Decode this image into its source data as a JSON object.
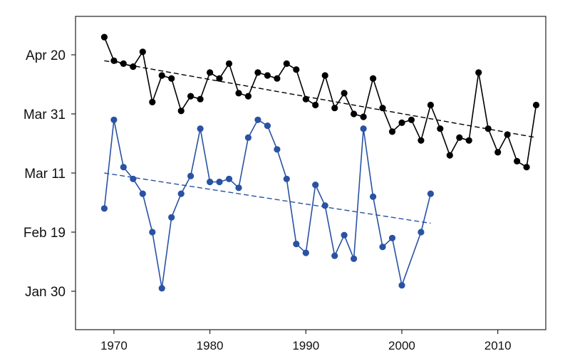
{
  "chart_data": {
    "type": "line",
    "title": "",
    "xlabel": "",
    "ylabel": "",
    "x_ticks": [
      1970,
      1980,
      1990,
      2000,
      2010
    ],
    "x_tick_labels": [
      "1970",
      "1980",
      "1990",
      "2000",
      "2010"
    ],
    "xlim": [
      1966,
      2015
    ],
    "y_ticks": [
      "Jan 30",
      "Feb 19",
      "Mar 11",
      "Mar 31",
      "Apr 20"
    ],
    "y_tick_labels": [
      "Jan 30",
      "Feb 19",
      "Mar 11",
      "Mar 31",
      "Apr 20"
    ],
    "ylim": [
      "Jan 17",
      "May 3"
    ],
    "grid": false,
    "series": [
      {
        "color": "#000000",
        "x": [
          1969,
          1970,
          1971,
          1972,
          1973,
          1974,
          1975,
          1976,
          1977,
          1978,
          1979,
          1980,
          1981,
          1982,
          1983,
          1984,
          1985,
          1986,
          1987,
          1988,
          1989,
          1990,
          1991,
          1992,
          1993,
          1994,
          1995,
          1996,
          1997,
          1998,
          1999,
          2000,
          2001,
          2002,
          2003,
          2004,
          2005,
          2006,
          2007,
          2008,
          2009,
          2010,
          2011,
          2012,
          2013,
          2014
        ],
        "y": [
          "Apr 26",
          "Apr 18",
          "Apr 17",
          "Apr 16",
          "Apr 21",
          "Apr 4",
          "Apr 13",
          "Apr 12",
          "Apr 1",
          "Apr 6",
          "Apr 5",
          "Apr 14",
          "Apr 12",
          "Apr 17",
          "Apr 7",
          "Apr 6",
          "Apr 14",
          "Apr 13",
          "Apr 12",
          "Apr 17",
          "Apr 15",
          "Apr 5",
          "Apr 3",
          "Apr 13",
          "Apr 2",
          "Apr 7",
          "Mar 31",
          "Mar 30",
          "Apr 12",
          "Apr 2",
          "Mar 25",
          "Mar 28",
          "Mar 29",
          "Mar 22",
          "Apr 3",
          "Mar 26",
          "Mar 17",
          "Mar 23",
          "Mar 22",
          "Apr 14",
          "Mar 26",
          "Mar 18",
          "Mar 24",
          "Mar 15",
          "Mar 13",
          "Apr 3"
        ]
      },
      {
        "color": "#2952a3",
        "x": [
          1969,
          1970,
          1971,
          1972,
          1973,
          1974,
          1975,
          1976,
          1977,
          1978,
          1979,
          1980,
          1981,
          1982,
          1983,
          1984,
          1985,
          1986,
          1987,
          1988,
          1989,
          1990,
          1991,
          1992,
          1993,
          1994,
          1995,
          1996,
          1997,
          1998,
          1999,
          2000,
          2001,
          2002,
          2003
        ],
        "y": [
          "Feb 27",
          "Mar 29",
          "Mar 13",
          "Mar 9",
          "Mar 4",
          "Feb 19",
          "Jan 31",
          "Feb 24",
          "Mar 4",
          "Mar 10",
          "Mar 26",
          "Mar 8",
          "Mar 8",
          "Mar 9",
          "Mar 6",
          "Mar 23",
          "Mar 29",
          "Mar 27",
          "Mar 19",
          "Mar 9",
          "Feb 15",
          "Feb 12",
          "Mar 7",
          "Feb 28",
          "Feb 11",
          "Feb 18",
          "Feb 10",
          "Mar 26",
          "Mar 3",
          "Feb 14",
          "Feb 17",
          "Feb 1",
          "",
          "Feb 19",
          "Mar 4"
        ]
      }
    ],
    "trendlines": [
      {
        "color": "#000000",
        "style": "dashed",
        "x": [
          1969,
          2014
        ],
        "y": [
          "Apr 18",
          "Mar 23"
        ]
      },
      {
        "color": "#2952a3",
        "style": "dashed",
        "x": [
          1969,
          2003
        ],
        "y": [
          "Mar 11",
          "Feb 22"
        ]
      }
    ]
  }
}
